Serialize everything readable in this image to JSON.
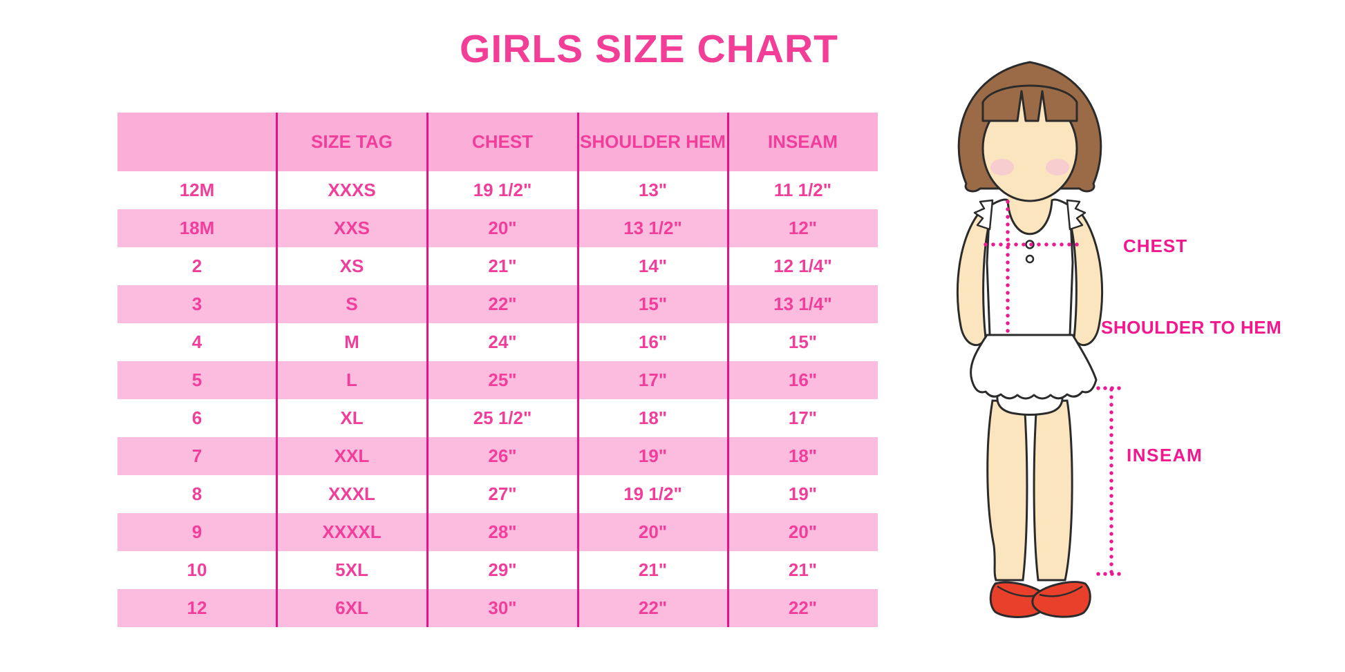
{
  "chart_data": {
    "type": "table",
    "title": "GIRLS SIZE CHART",
    "columns": [
      "",
      "SIZE TAG",
      "CHEST",
      "SHOULDER HEM",
      "INSEAM"
    ],
    "rows": [
      [
        "12M",
        "XXXS",
        "19 1/2\"",
        "13\"",
        "11 1/2\""
      ],
      [
        "18M",
        "XXS",
        "20\"",
        "13 1/2\"",
        "12\""
      ],
      [
        "2",
        "XS",
        "21\"",
        "14\"",
        "12 1/4\""
      ],
      [
        "3",
        "S",
        "22\"",
        "15\"",
        "13 1/4\""
      ],
      [
        "4",
        "M",
        "24\"",
        "16\"",
        "15\""
      ],
      [
        "5",
        "L",
        "25\"",
        "17\"",
        "16\""
      ],
      [
        "6",
        "XL",
        "25 1/2\"",
        "18\"",
        "17\""
      ],
      [
        "7",
        "XXL",
        "26\"",
        "19\"",
        "18\""
      ],
      [
        "8",
        "XXXL",
        "27\"",
        "19 1/2\"",
        "19\""
      ],
      [
        "9",
        "XXXXL",
        "28\"",
        "20\"",
        "20\""
      ],
      [
        "10",
        "5XL",
        "29\"",
        "21\"",
        "21\""
      ],
      [
        "12",
        "6XL",
        "30\"",
        "22\"",
        "22\""
      ]
    ],
    "layout": {
      "grid": "vertical-separators-only",
      "alternating_rows": true
    }
  },
  "measurement_labels": {
    "chest": "CHEST",
    "shoulder_to_hem": "SHOULDER TO HEM",
    "inseam": "INSEAM"
  },
  "colors": {
    "title_pink": "#F23E97",
    "table_text_pink": "#F23E9B",
    "header_bg_pink": "#FBAED7",
    "row_bg_pink": "#FBBCDF",
    "separator_pink": "#E3138A",
    "dotted_line_magenta": "#EB1A90",
    "label_magenta": "#F2168F",
    "hair_brown": "#9B6B47",
    "skin": "#FAE5BE",
    "blush": "#F7C9D4",
    "shoe_red": "#E8402B"
  }
}
